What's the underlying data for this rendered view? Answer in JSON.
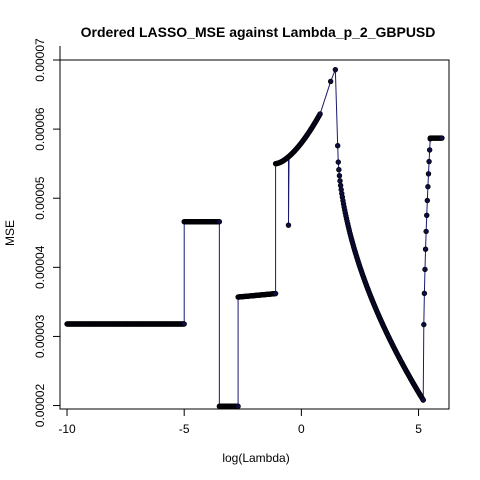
{
  "chart_data": {
    "type": "line",
    "title": "Ordered LASSO_MSE against Lambda_p_2_GBPUSD",
    "xlabel": "log(Lambda)",
    "ylabel": "MSE",
    "xlim": [
      -10.3,
      6.3
    ],
    "ylim": [
      1.95e-05,
      7e-05
    ],
    "x_ticks": [
      -10,
      -5,
      0,
      5
    ],
    "x_tick_labels": [
      "-10",
      "-5",
      "0",
      "5"
    ],
    "y_ticks": [
      2e-05,
      3e-05,
      4e-05,
      5e-05,
      6e-05,
      7e-05
    ],
    "y_tick_labels": [
      "0.00002",
      "0.00003",
      "0.00004",
      "0.00005",
      "0.00006",
      "0.00007"
    ],
    "grid": false,
    "legend": "none",
    "colors": {
      "line": "#191970",
      "points": "#0d0d40"
    },
    "series": [
      {
        "segments": [
          {
            "x_from": -10.0,
            "x_to": -5.0,
            "y": 3.18e-05
          },
          {
            "x_from": -5.0,
            "x_to": -3.5,
            "y": 4.66e-05
          },
          {
            "x_from": -3.5,
            "x_to": -2.7,
            "y": 1.99e-05
          },
          {
            "x_from": -2.7,
            "x_to": -1.1,
            "y_from": 3.57e-05,
            "y_to": 3.62e-05
          },
          {
            "x_from": -1.1,
            "x_to": 0.8,
            "y_from": 5.5e-05,
            "y_to": 6.22e-05,
            "curve": 1.6
          },
          {
            "x_from": 1.55,
            "x_to": 5.2,
            "y_from": 5.76e-05,
            "y_to": 2.08e-05,
            "curve": 0.55
          },
          {
            "x_from": 5.2,
            "x_to": 5.5,
            "y_from": 2.08e-05,
            "y_to": 5.86e-05,
            "curve": 0.5
          },
          {
            "x_from": 5.5,
            "x_to": 6.0,
            "y": 5.87e-05
          }
        ],
        "extra_points": [
          {
            "x": -0.55,
            "y": 4.61e-05
          },
          {
            "x": 1.25,
            "y": 6.69e-05
          },
          {
            "x": 1.45,
            "y": 6.86e-05
          }
        ]
      }
    ]
  }
}
